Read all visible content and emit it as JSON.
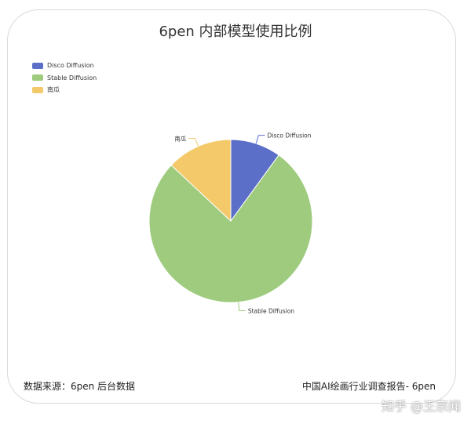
{
  "chart_data": {
    "type": "pie",
    "title": "6pen 内部模型使用比例",
    "legend_position": "top-left",
    "series": [
      {
        "name": "Disco Diffusion",
        "value": 10,
        "color": "#5b6fc8"
      },
      {
        "name": "Stable Diffusion",
        "value": 77,
        "color": "#9ecb7d"
      },
      {
        "name": "南瓜",
        "value": 13,
        "color": "#f3c96a"
      }
    ]
  },
  "footer": {
    "source": "数据来源：6pen 后台数据",
    "report": "中国AI绘画行业调查报告- 6pen"
  },
  "watermark": "知乎 @王宗闻"
}
